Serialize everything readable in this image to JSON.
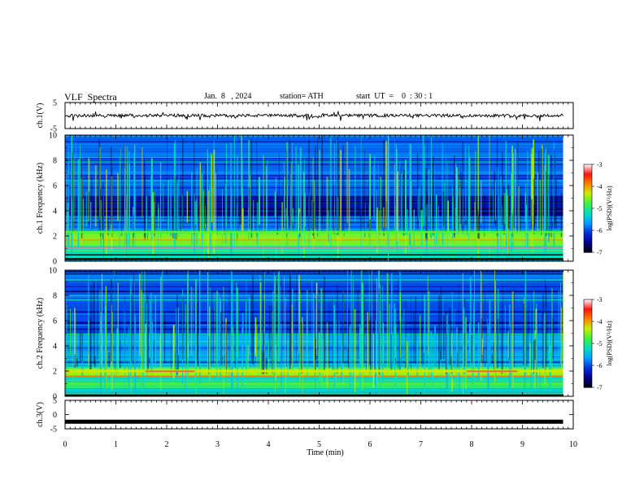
{
  "header": {
    "title": "VLF  Spectra",
    "date": "Jan.  8   , 2024",
    "station": "station= ATH",
    "start": "start  UT  =    0  : 30 : 1"
  },
  "chart_data": [
    {
      "type": "line",
      "panel": "ch1-waveform",
      "ylabel": "ch.1(V)",
      "ylim": [
        -5,
        5
      ],
      "yticks": [
        "5",
        "-5"
      ],
      "xlim": [
        0,
        10
      ],
      "description_values": {
        "baseline": 0,
        "noise_amplitude": 0.6,
        "spike_amplitude": 2.0
      }
    },
    {
      "type": "heatmap",
      "panel": "ch1-spectrogram",
      "ylabel": "ch.1  Frequency  (kHz)",
      "ylim": [
        0,
        10
      ],
      "yticks": [
        "0",
        "2",
        "4",
        "6",
        "8",
        "10"
      ],
      "xlim": [
        0,
        9.8
      ],
      "colorbar": {
        "label": "log(PSD)(V²/Hz)",
        "range": [
          -7,
          -3
        ],
        "ticks": [
          "-3",
          "-4",
          "-5",
          "-6",
          "-7"
        ]
      },
      "bands": [
        {
          "f_low": 0,
          "f_high": 1,
          "level": -5.2
        },
        {
          "f_low": 1,
          "f_high": 2.4,
          "level": -4.6
        },
        {
          "f_low": 2.4,
          "f_high": 3.5,
          "level": -5.8
        },
        {
          "f_low": 3.5,
          "f_high": 5.2,
          "level": -6.4
        },
        {
          "f_low": 5.2,
          "f_high": 10,
          "level": -5.9
        }
      ]
    },
    {
      "type": "heatmap",
      "panel": "ch2-spectrogram",
      "ylabel": "ch.2  Frequency  (kHz)",
      "ylim": [
        0,
        10
      ],
      "yticks": [
        "0",
        "2",
        "4",
        "6",
        "8",
        "10"
      ],
      "xlim": [
        0,
        9.8
      ],
      "colorbar": {
        "label": "log(PSD)(V²/Hz)",
        "range": [
          -7,
          -3
        ],
        "ticks": [
          "-3",
          "-4",
          "-5",
          "-6",
          "-7"
        ]
      },
      "bands": [
        {
          "f_low": 0,
          "f_high": 1.6,
          "level": -5.3
        },
        {
          "f_low": 1.6,
          "f_high": 2.3,
          "level": -4.5
        },
        {
          "f_low": 2.3,
          "f_high": 5,
          "level": -5.6
        },
        {
          "f_low": 5,
          "f_high": 10,
          "level": -6.0
        }
      ]
    },
    {
      "type": "line",
      "panel": "ch3-waveform",
      "ylabel": "ch.3(V)",
      "ylim": [
        -5,
        5
      ],
      "yticks": [
        "5",
        "0",
        "-5"
      ],
      "xlim": [
        0,
        10
      ],
      "xlabel": "Time  (min)",
      "xticks": [
        "0",
        "1",
        "2",
        "3",
        "4",
        "5",
        "6",
        "7",
        "8",
        "9",
        "10"
      ],
      "description_values": {
        "baseline": -2.5
      }
    }
  ],
  "colors": {
    "axis": "#000000",
    "waveform": "#000000",
    "cmap": [
      "#000010",
      "#00008c",
      "#0030e0",
      "#00a0ff",
      "#00e0c0",
      "#40f040",
      "#c8f000",
      "#ff8000",
      "#ff1010",
      "#ffffff"
    ]
  }
}
